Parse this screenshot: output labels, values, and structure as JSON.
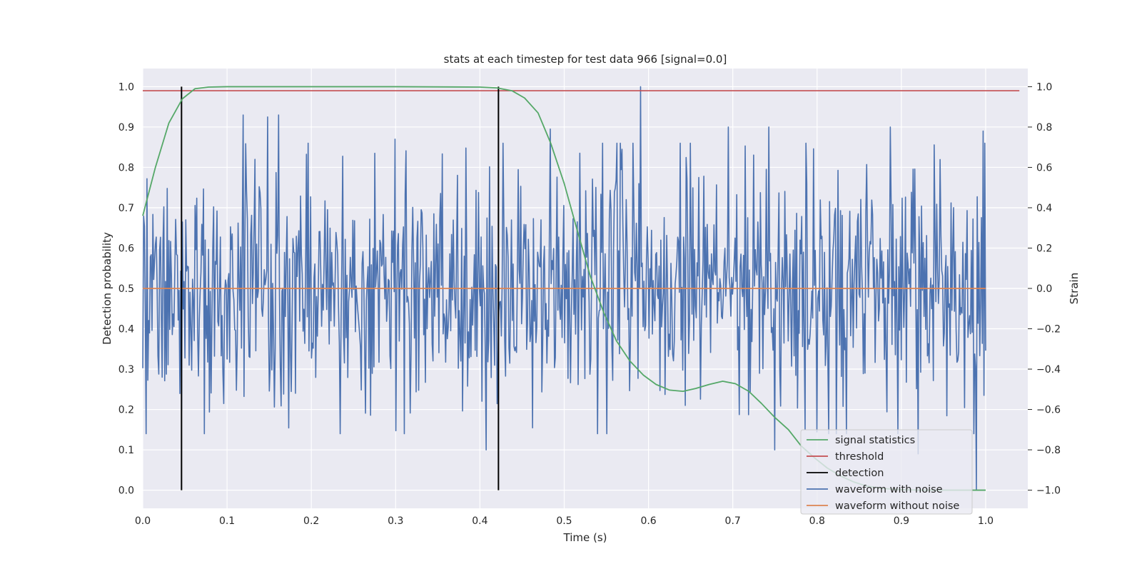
{
  "chart_data": {
    "type": "line",
    "title": "stats at each timestep for test data 966 [signal=0.0]",
    "xlabel": "Time (s)",
    "ylabel": "Detection probability",
    "ylabel_right": "Strain",
    "xlim": [
      0.0,
      1.05
    ],
    "ylim": [
      -0.045,
      1.045
    ],
    "ylim_right": [
      -1.09,
      1.09
    ],
    "xticks": [
      "0.0",
      "0.1",
      "0.2",
      "0.3",
      "0.4",
      "0.5",
      "0.6",
      "0.7",
      "0.8",
      "0.9",
      "1.0"
    ],
    "yticks": [
      "0.0",
      "0.1",
      "0.2",
      "0.3",
      "0.4",
      "0.5",
      "0.6",
      "0.7",
      "0.8",
      "0.9",
      "1.0"
    ],
    "yticks_right": [
      "−1.0",
      "−0.8",
      "−0.6",
      "−0.4",
      "−0.2",
      "0.0",
      "0.2",
      "0.4",
      "0.6",
      "0.8",
      "1.0"
    ],
    "grid": true,
    "legend_position": "lower right",
    "series": [
      {
        "name": "signal statistics",
        "axis": "left",
        "color": "#55a868",
        "x": [
          0.0,
          0.015,
          0.031,
          0.047,
          0.062,
          0.078,
          0.1,
          0.2,
          0.3,
          0.4,
          0.42,
          0.438,
          0.453,
          0.469,
          0.484,
          0.5,
          0.516,
          0.531,
          0.547,
          0.562,
          0.578,
          0.594,
          0.609,
          0.625,
          0.641,
          0.656,
          0.672,
          0.688,
          0.703,
          0.719,
          0.734,
          0.75,
          0.766,
          0.781,
          0.797,
          0.812,
          0.828,
          0.844,
          0.859,
          0.875,
          0.891,
          0.906,
          0.922,
          0.938,
          0.953,
          0.969,
          0.984,
          1.0
        ],
        "y": [
          0.68,
          0.8,
          0.91,
          0.97,
          0.995,
          0.999,
          1.0,
          1.0,
          1.0,
          0.999,
          0.997,
          0.99,
          0.972,
          0.935,
          0.86,
          0.76,
          0.64,
          0.53,
          0.44,
          0.37,
          0.32,
          0.285,
          0.262,
          0.248,
          0.245,
          0.252,
          0.262,
          0.27,
          0.264,
          0.245,
          0.215,
          0.18,
          0.15,
          0.11,
          0.08,
          0.055,
          0.035,
          0.02,
          0.01,
          0.005,
          0.002,
          0.001,
          0.0,
          0.0,
          0.0,
          0.0,
          0.0,
          0.0
        ]
      },
      {
        "name": "threshold",
        "axis": "left",
        "color": "#c44e52",
        "x": [
          0.0,
          1.04
        ],
        "y": [
          0.99,
          0.99
        ]
      },
      {
        "name": "detection",
        "axis": "left",
        "color": "#000000",
        "segments": [
          {
            "x": 0.046,
            "y": [
              0.0,
              1.0
            ]
          },
          {
            "x": 0.422,
            "y": [
              0.0,
              1.0
            ]
          }
        ]
      },
      {
        "name": "waveform with noise",
        "axis": "right",
        "color": "#4c72b0",
        "description_points": 1000,
        "x_range": [
          0.0,
          1.0
        ],
        "y_range_observed": [
          -1.0,
          1.0
        ],
        "noise_std": 0.3,
        "seed": 966,
        "spikes": [
          {
            "x": 0.119,
            "y": 0.86
          },
          {
            "x": 0.148,
            "y": 0.85
          },
          {
            "x": 0.161,
            "y": 0.86
          },
          {
            "x": 0.275,
            "y": 0.67
          },
          {
            "x": 0.299,
            "y": 0.74
          },
          {
            "x": 0.407,
            "y": -0.8
          },
          {
            "x": 0.483,
            "y": 0.79
          },
          {
            "x": 0.591,
            "y": 1.0
          },
          {
            "x": 0.695,
            "y": 0.8
          },
          {
            "x": 0.743,
            "y": 0.8
          },
          {
            "x": 0.75,
            "y": -0.8
          },
          {
            "x": 0.887,
            "y": 0.8
          },
          {
            "x": 0.92,
            "y": -0.82
          },
          {
            "x": 0.989,
            "y": -1.0
          },
          {
            "x": 0.997,
            "y": 0.78
          }
        ]
      },
      {
        "name": "waveform without noise",
        "axis": "right",
        "color": "#dd8452",
        "x": [
          0.0,
          1.0
        ],
        "y": [
          0.0,
          0.0
        ]
      }
    ]
  }
}
